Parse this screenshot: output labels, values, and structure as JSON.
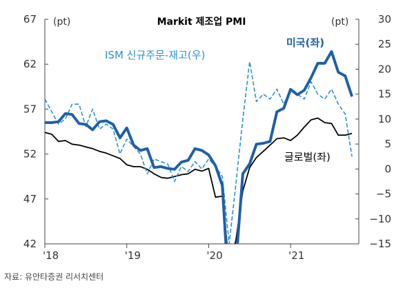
{
  "chart_data": {
    "type": "line",
    "title": "Markit 제조업 PMI",
    "y_left": {
      "unit": "(pt)",
      "range": [
        42,
        67
      ],
      "ticks": [
        42,
        47,
        52,
        57,
        62,
        67
      ]
    },
    "y_right": {
      "unit": "(pt)",
      "range": [
        -15,
        30
      ],
      "ticks": [
        -15,
        -10,
        -5,
        0,
        5,
        10,
        15,
        20,
        25,
        30
      ]
    },
    "x_range": [
      2018.0,
      2021.833
    ],
    "x_ticks": [
      {
        "x": 2018.0,
        "label": "'18"
      },
      {
        "x": 2019.0,
        "label": "'19"
      },
      {
        "x": 2020.0,
        "label": "'20"
      },
      {
        "x": 2021.0,
        "label": "'21"
      }
    ],
    "grid": false,
    "series": [
      {
        "name": "미국(좌)",
        "axis": "left",
        "color": "#1f5fa8",
        "points": [
          [
            2018.0,
            55.5
          ],
          [
            2018.083,
            55.5
          ],
          [
            2018.167,
            55.6
          ],
          [
            2018.25,
            56.5
          ],
          [
            2018.333,
            56.4
          ],
          [
            2018.417,
            55.4
          ],
          [
            2018.5,
            55.3
          ],
          [
            2018.583,
            54.7
          ],
          [
            2018.667,
            55.6
          ],
          [
            2018.75,
            55.7
          ],
          [
            2018.833,
            55.3
          ],
          [
            2018.917,
            53.8
          ],
          [
            2019.0,
            54.9
          ],
          [
            2019.083,
            53.0
          ],
          [
            2019.167,
            52.4
          ],
          [
            2019.25,
            52.6
          ],
          [
            2019.333,
            50.5
          ],
          [
            2019.417,
            50.6
          ],
          [
            2019.5,
            50.4
          ],
          [
            2019.583,
            50.3
          ],
          [
            2019.667,
            51.1
          ],
          [
            2019.75,
            51.3
          ],
          [
            2019.833,
            52.6
          ],
          [
            2019.917,
            52.4
          ],
          [
            2020.0,
            51.9
          ],
          [
            2020.083,
            50.7
          ],
          [
            2020.167,
            48.5
          ],
          [
            2020.25,
            36.1
          ],
          [
            2020.333,
            39.8
          ],
          [
            2020.417,
            49.8
          ],
          [
            2020.5,
            50.9
          ],
          [
            2020.583,
            53.1
          ],
          [
            2020.667,
            53.2
          ],
          [
            2020.75,
            53.4
          ],
          [
            2020.833,
            56.7
          ],
          [
            2020.917,
            57.1
          ],
          [
            2021.0,
            59.2
          ],
          [
            2021.083,
            58.6
          ],
          [
            2021.167,
            59.1
          ],
          [
            2021.25,
            60.5
          ],
          [
            2021.333,
            62.1
          ],
          [
            2021.417,
            62.1
          ],
          [
            2021.5,
            63.4
          ],
          [
            2021.583,
            61.1
          ],
          [
            2021.667,
            60.7
          ],
          [
            2021.75,
            58.4
          ]
        ]
      },
      {
        "name": "ISM 신규주문-재고(우)",
        "axis": "right",
        "color": "#2a8fd6",
        "dashed": true,
        "points": [
          [
            2018.0,
            14
          ],
          [
            2018.083,
            11.5
          ],
          [
            2018.167,
            9
          ],
          [
            2018.25,
            10
          ],
          [
            2018.333,
            13
          ],
          [
            2018.417,
            13
          ],
          [
            2018.5,
            8.5
          ],
          [
            2018.583,
            12
          ],
          [
            2018.667,
            8
          ],
          [
            2018.75,
            9
          ],
          [
            2018.833,
            8
          ],
          [
            2018.917,
            3
          ],
          [
            2019.0,
            6
          ],
          [
            2019.083,
            4.5
          ],
          [
            2019.167,
            3
          ],
          [
            2019.25,
            -1
          ],
          [
            2019.333,
            2
          ],
          [
            2019.417,
            1.5
          ],
          [
            2019.5,
            1
          ],
          [
            2019.583,
            -2.5
          ],
          [
            2019.667,
            0.5
          ],
          [
            2019.75,
            -0.5
          ],
          [
            2019.833,
            1.5
          ],
          [
            2019.917,
            0
          ],
          [
            2020.0,
            2
          ],
          [
            2020.083,
            0.5
          ],
          [
            2020.167,
            -1.5
          ],
          [
            2020.25,
            -15
          ],
          [
            2020.333,
            -3
          ],
          [
            2020.417,
            10
          ],
          [
            2020.5,
            21.5
          ],
          [
            2020.583,
            13.5
          ],
          [
            2020.667,
            15
          ],
          [
            2020.75,
            14
          ],
          [
            2020.833,
            16
          ],
          [
            2020.917,
            13
          ],
          [
            2021.0,
            16
          ],
          [
            2021.083,
            15
          ],
          [
            2021.167,
            14
          ],
          [
            2021.25,
            17.5
          ],
          [
            2021.333,
            15
          ],
          [
            2021.417,
            14
          ],
          [
            2021.5,
            16
          ],
          [
            2021.583,
            13
          ],
          [
            2021.667,
            11
          ],
          [
            2021.75,
            2.5
          ]
        ]
      },
      {
        "name": "글로벌(좌)",
        "axis": "left",
        "color": "#000000",
        "points": [
          [
            2018.0,
            54.4
          ],
          [
            2018.083,
            54.2
          ],
          [
            2018.167,
            53.4
          ],
          [
            2018.25,
            53.5
          ],
          [
            2018.333,
            53.1
          ],
          [
            2018.417,
            53.0
          ],
          [
            2018.5,
            52.8
          ],
          [
            2018.583,
            52.6
          ],
          [
            2018.667,
            52.3
          ],
          [
            2018.75,
            52.1
          ],
          [
            2018.833,
            51.8
          ],
          [
            2018.917,
            51.5
          ],
          [
            2019.0,
            50.8
          ],
          [
            2019.083,
            50.6
          ],
          [
            2019.167,
            50.6
          ],
          [
            2019.25,
            50.3
          ],
          [
            2019.333,
            49.8
          ],
          [
            2019.417,
            49.4
          ],
          [
            2019.5,
            49.3
          ],
          [
            2019.583,
            49.5
          ],
          [
            2019.667,
            49.7
          ],
          [
            2019.75,
            49.8
          ],
          [
            2019.833,
            50.3
          ],
          [
            2019.917,
            50.1
          ],
          [
            2020.0,
            50.4
          ],
          [
            2020.083,
            47.2
          ],
          [
            2020.167,
            47.3
          ],
          [
            2020.25,
            39.6
          ],
          [
            2020.333,
            42.4
          ],
          [
            2020.417,
            47.9
          ],
          [
            2020.5,
            50.5
          ],
          [
            2020.583,
            51.6
          ],
          [
            2020.667,
            52.3
          ],
          [
            2020.75,
            53.0
          ],
          [
            2020.833,
            53.7
          ],
          [
            2020.917,
            53.8
          ],
          [
            2021.0,
            53.5
          ],
          [
            2021.083,
            54.1
          ],
          [
            2021.167,
            55.0
          ],
          [
            2021.25,
            55.8
          ],
          [
            2021.333,
            56.0
          ],
          [
            2021.417,
            55.5
          ],
          [
            2021.5,
            55.4
          ],
          [
            2021.583,
            54.1
          ],
          [
            2021.667,
            54.1
          ],
          [
            2021.75,
            54.3
          ]
        ]
      }
    ]
  },
  "source": "자료: 유안타증권 리서치센터"
}
